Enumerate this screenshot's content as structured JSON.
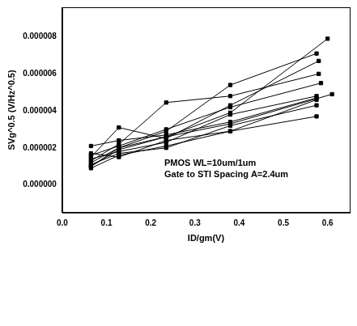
{
  "chart_data": {
    "type": "scatter",
    "x_label": "ID/gm(V)",
    "y_label": "SVg^0.5 (V/Hz^0.5)",
    "annotations": [
      "PMOS WL=10um/1um",
      "Gate to STI Spacing A=2.4um"
    ],
    "color": "#000000",
    "marker": "square",
    "line_style": "solid",
    "grid": false,
    "xlim": [
      0,
      0.65
    ],
    "ylim": [
      -1.5e-06,
      9.6e-06
    ],
    "xticks": [
      {
        "value": 0,
        "label": "0.0"
      },
      {
        "value": 0.1,
        "label": "0.1"
      },
      {
        "value": 0.2,
        "label": "0.2"
      },
      {
        "value": 0.3,
        "label": "0.3"
      },
      {
        "value": 0.4,
        "label": "0.4"
      },
      {
        "value": 0.5,
        "label": "0.5"
      },
      {
        "value": 0.6,
        "label": "0.6"
      }
    ],
    "yticks": [
      {
        "value": 0,
        "label": "0.000000"
      },
      {
        "value": 2e-06,
        "label": "0.000002"
      },
      {
        "value": 4e-06,
        "label": "0.000004"
      },
      {
        "value": 6e-06,
        "label": "0.000006"
      },
      {
        "value": 8e-06,
        "label": "0.000008"
      }
    ],
    "series": [
      {
        "x": [
          0.065,
          0.128,
          0.235,
          0.38,
          0.6
        ],
        "values": [
          1e-06,
          1.9e-06,
          2.6e-06,
          3.9e-06,
          7.9e-06
        ]
      },
      {
        "x": [
          0.065,
          0.128,
          0.235,
          0.38,
          0.575
        ],
        "values": [
          1.2e-06,
          2e-06,
          2.9e-06,
          5.4e-06,
          7.1e-06
        ]
      },
      {
        "x": [
          0.065,
          0.128,
          0.235,
          0.38,
          0.58
        ],
        "values": [
          1.5e-06,
          3.1e-06,
          2.5e-06,
          4.3e-06,
          6.7e-06
        ]
      },
      {
        "x": [
          0.065,
          0.128,
          0.235,
          0.38,
          0.58
        ],
        "values": [
          1.3e-06,
          2.2e-06,
          4.45e-06,
          4.8e-06,
          6e-06
        ]
      },
      {
        "x": [
          0.065,
          0.128,
          0.235,
          0.38,
          0.585
        ],
        "values": [
          1.6e-06,
          2.1e-06,
          3e-06,
          4.2e-06,
          5.5e-06
        ]
      },
      {
        "x": [
          0.065,
          0.128,
          0.235,
          0.38,
          0.575
        ],
        "values": [
          1.4e-06,
          1.8e-06,
          2.3e-06,
          3.8e-06,
          4.8e-06
        ]
      },
      {
        "x": [
          0.065,
          0.128,
          0.235,
          0.38,
          0.575
        ],
        "values": [
          2.1e-06,
          2.4e-06,
          2.7e-06,
          3.4e-06,
          4.7e-06
        ]
      },
      {
        "x": [
          0.065,
          0.128,
          0.235,
          0.38,
          0.575
        ],
        "values": [
          9e-07,
          1.6e-06,
          2.1e-06,
          2.9e-06,
          4.6e-06
        ]
      },
      {
        "x": [
          0.065,
          0.128,
          0.235,
          0.38,
          0.575
        ],
        "values": [
          1.1e-06,
          1.7e-06,
          2e-06,
          3.2e-06,
          4.3e-06
        ]
      },
      {
        "x": [
          0.065,
          0.128,
          0.235,
          0.38,
          0.575
        ],
        "values": [
          1.7e-06,
          1.5e-06,
          2.4e-06,
          2.9e-06,
          3.7e-06
        ]
      },
      {
        "x": [
          0.065,
          0.128,
          0.235,
          0.38,
          0.61
        ],
        "values": [
          1e-06,
          2e-06,
          2.6e-06,
          3.3e-06,
          4.9e-06
        ]
      }
    ]
  }
}
